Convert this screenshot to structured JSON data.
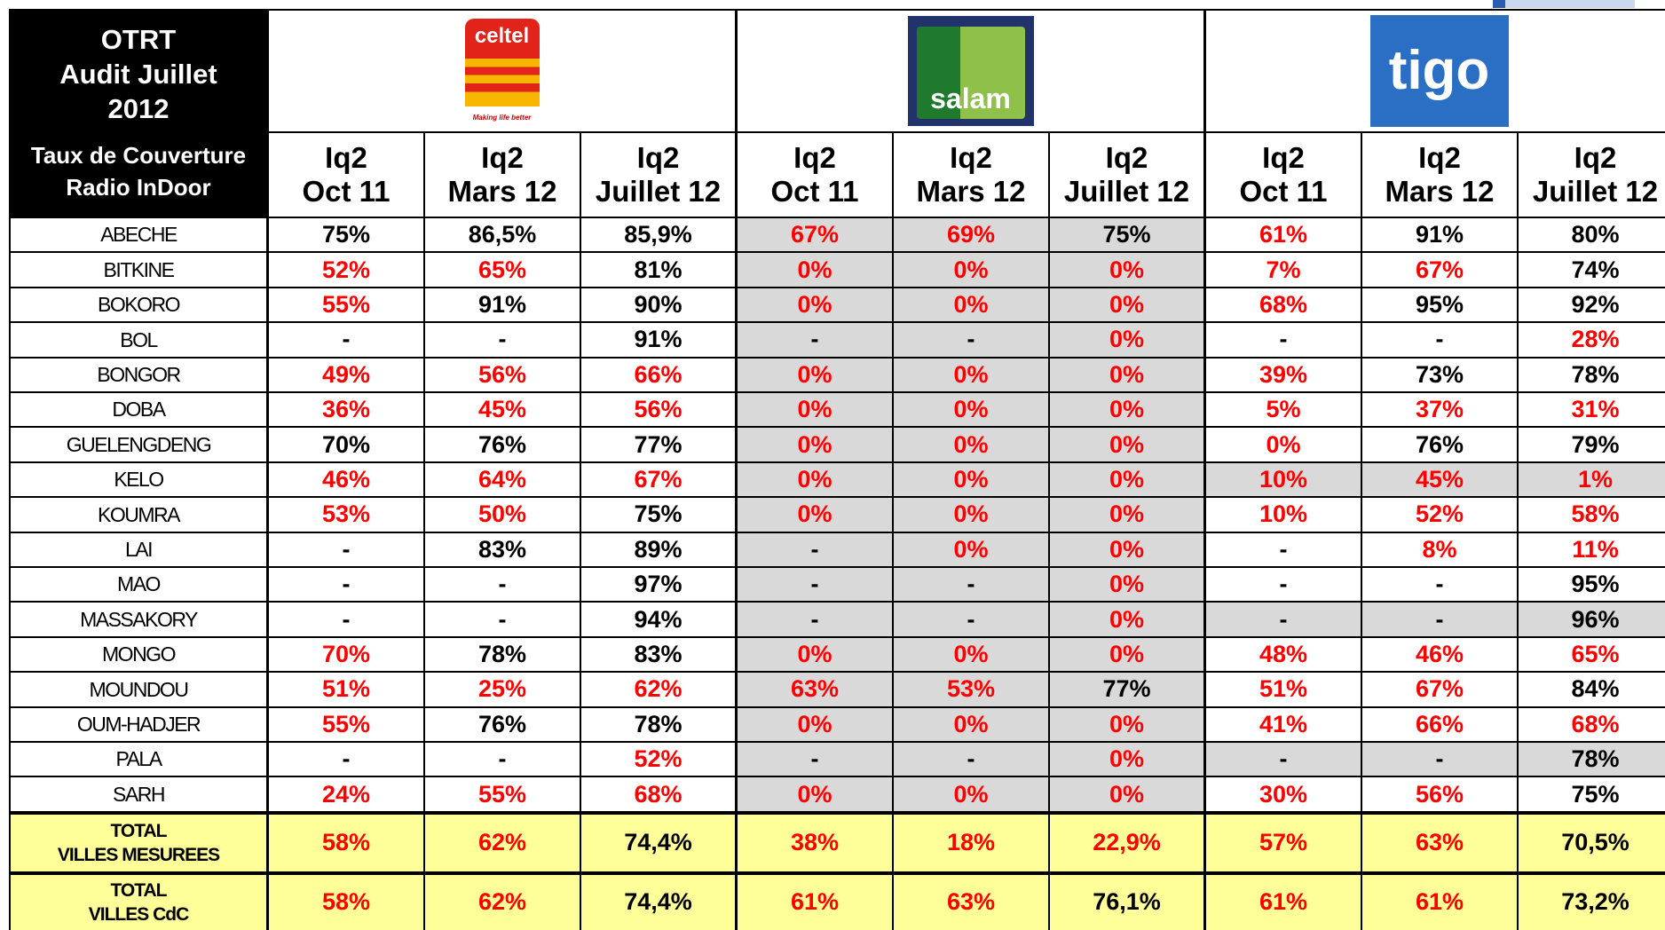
{
  "header": {
    "title_lines": [
      "OTRT",
      "Audit Juillet",
      "2012"
    ],
    "subtitle_lines": [
      "Taux de Couverture",
      "Radio InDoor"
    ]
  },
  "operators": [
    {
      "name": "celtel",
      "tagline": "Making life better",
      "color": "#e2231a"
    },
    {
      "name": "salam",
      "color": "#1f7a2e"
    },
    {
      "name": "tigo",
      "color": "#2a6fc4"
    }
  ],
  "columns": [
    [
      "Iq2",
      "Oct 11"
    ],
    [
      "Iq2",
      "Mars 12"
    ],
    [
      "Iq2",
      "Juillet 12"
    ],
    [
      "Iq2",
      "Oct 11"
    ],
    [
      "Iq2",
      "Mars 12"
    ],
    [
      "Iq2",
      "Juillet 12"
    ],
    [
      "Iq2",
      "Oct 11"
    ],
    [
      "Iq2",
      "Mars 12"
    ],
    [
      "Iq2",
      "Juillet 12"
    ]
  ],
  "rows": [
    {
      "city": "ABECHE",
      "cells": [
        "75%",
        "86,5%",
        "85,9%",
        "67%",
        "69%",
        "75%",
        "61%",
        "91%",
        "80%"
      ],
      "colors": [
        "#000",
        "#000",
        "#000",
        "#f00",
        "#f00",
        "#000",
        "#f00",
        "#000",
        "#000"
      ],
      "fills": [
        "#fff",
        "#fff",
        "#fff",
        "#d9d9d9",
        "#d9d9d9",
        "#d9d9d9",
        "#fff",
        "#fff",
        "#fff"
      ]
    },
    {
      "city": "BITKINE",
      "cells": [
        "52%",
        "65%",
        "81%",
        "0%",
        "0%",
        "0%",
        "7%",
        "67%",
        "74%"
      ],
      "colors": [
        "#f00",
        "#f00",
        "#000",
        "#f00",
        "#f00",
        "#f00",
        "#f00",
        "#f00",
        "#000"
      ],
      "fills": [
        "#fff",
        "#fff",
        "#fff",
        "#d9d9d9",
        "#d9d9d9",
        "#d9d9d9",
        "#fff",
        "#fff",
        "#fff"
      ]
    },
    {
      "city": "BOKORO",
      "cells": [
        "55%",
        "91%",
        "90%",
        "0%",
        "0%",
        "0%",
        "68%",
        "95%",
        "92%"
      ],
      "colors": [
        "#f00",
        "#000",
        "#000",
        "#f00",
        "#f00",
        "#f00",
        "#f00",
        "#000",
        "#000"
      ],
      "fills": [
        "#fff",
        "#fff",
        "#fff",
        "#d9d9d9",
        "#d9d9d9",
        "#d9d9d9",
        "#fff",
        "#fff",
        "#fff"
      ]
    },
    {
      "city": "BOL",
      "cells": [
        "-",
        "-",
        "91%",
        "-",
        "-",
        "0%",
        "-",
        "-",
        "28%"
      ],
      "colors": [
        "#000",
        "#000",
        "#000",
        "#000",
        "#000",
        "#f00",
        "#000",
        "#000",
        "#f00"
      ],
      "fills": [
        "#fff",
        "#fff",
        "#fff",
        "#d9d9d9",
        "#d9d9d9",
        "#d9d9d9",
        "#fff",
        "#fff",
        "#fff"
      ]
    },
    {
      "city": "BONGOR",
      "cells": [
        "49%",
        "56%",
        "66%",
        "0%",
        "0%",
        "0%",
        "39%",
        "73%",
        "78%"
      ],
      "colors": [
        "#f00",
        "#f00",
        "#f00",
        "#f00",
        "#f00",
        "#f00",
        "#f00",
        "#000",
        "#000"
      ],
      "fills": [
        "#fff",
        "#fff",
        "#fff",
        "#d9d9d9",
        "#d9d9d9",
        "#d9d9d9",
        "#fff",
        "#fff",
        "#fff"
      ]
    },
    {
      "city": "DOBA",
      "cells": [
        "36%",
        "45%",
        "56%",
        "0%",
        "0%",
        "0%",
        "5%",
        "37%",
        "31%"
      ],
      "colors": [
        "#f00",
        "#f00",
        "#f00",
        "#f00",
        "#f00",
        "#f00",
        "#f00",
        "#f00",
        "#f00"
      ],
      "fills": [
        "#fff",
        "#fff",
        "#fff",
        "#d9d9d9",
        "#d9d9d9",
        "#d9d9d9",
        "#fff",
        "#fff",
        "#fff"
      ]
    },
    {
      "city": "GUELENGDENG",
      "cells": [
        "70%",
        "76%",
        "77%",
        "0%",
        "0%",
        "0%",
        "0%",
        "76%",
        "79%"
      ],
      "colors": [
        "#000",
        "#000",
        "#000",
        "#f00",
        "#f00",
        "#f00",
        "#f00",
        "#000",
        "#000"
      ],
      "fills": [
        "#fff",
        "#fff",
        "#fff",
        "#d9d9d9",
        "#d9d9d9",
        "#d9d9d9",
        "#fff",
        "#fff",
        "#fff"
      ]
    },
    {
      "city": "KELO",
      "cells": [
        "46%",
        "64%",
        "67%",
        "0%",
        "0%",
        "0%",
        "10%",
        "45%",
        "1%"
      ],
      "colors": [
        "#f00",
        "#f00",
        "#f00",
        "#f00",
        "#f00",
        "#f00",
        "#f00",
        "#f00",
        "#f00"
      ],
      "fills": [
        "#fff",
        "#fff",
        "#fff",
        "#d9d9d9",
        "#d9d9d9",
        "#d9d9d9",
        "#d9d9d9",
        "#d9d9d9",
        "#d9d9d9"
      ]
    },
    {
      "city": "KOUMRA",
      "cells": [
        "53%",
        "50%",
        "75%",
        "0%",
        "0%",
        "0%",
        "10%",
        "52%",
        "58%"
      ],
      "colors": [
        "#f00",
        "#f00",
        "#000",
        "#f00",
        "#f00",
        "#f00",
        "#f00",
        "#f00",
        "#f00"
      ],
      "fills": [
        "#fff",
        "#fff",
        "#fff",
        "#d9d9d9",
        "#d9d9d9",
        "#d9d9d9",
        "#fff",
        "#fff",
        "#fff"
      ]
    },
    {
      "city": "LAI",
      "cells": [
        "-",
        "83%",
        "89%",
        "-",
        "0%",
        "0%",
        "-",
        "8%",
        "11%"
      ],
      "colors": [
        "#000",
        "#000",
        "#000",
        "#000",
        "#f00",
        "#f00",
        "#000",
        "#f00",
        "#f00"
      ],
      "fills": [
        "#fff",
        "#fff",
        "#fff",
        "#d9d9d9",
        "#d9d9d9",
        "#d9d9d9",
        "#fff",
        "#fff",
        "#fff"
      ]
    },
    {
      "city": "MAO",
      "cells": [
        "-",
        "-",
        "97%",
        "-",
        "-",
        "0%",
        "-",
        "-",
        "95%"
      ],
      "colors": [
        "#000",
        "#000",
        "#000",
        "#000",
        "#000",
        "#f00",
        "#000",
        "#000",
        "#000"
      ],
      "fills": [
        "#fff",
        "#fff",
        "#fff",
        "#d9d9d9",
        "#d9d9d9",
        "#d9d9d9",
        "#fff",
        "#fff",
        "#fff"
      ]
    },
    {
      "city": "MASSAKORY",
      "cells": [
        "-",
        "-",
        "94%",
        "-",
        "-",
        "0%",
        "-",
        "-",
        "96%"
      ],
      "colors": [
        "#000",
        "#000",
        "#000",
        "#000",
        "#000",
        "#f00",
        "#000",
        "#000",
        "#000"
      ],
      "fills": [
        "#fff",
        "#fff",
        "#fff",
        "#d9d9d9",
        "#d9d9d9",
        "#d9d9d9",
        "#d9d9d9",
        "#d9d9d9",
        "#d9d9d9"
      ]
    },
    {
      "city": "MONGO",
      "cells": [
        "70%",
        "78%",
        "83%",
        "0%",
        "0%",
        "0%",
        "48%",
        "46%",
        "65%"
      ],
      "colors": [
        "#f00",
        "#000",
        "#000",
        "#f00",
        "#f00",
        "#f00",
        "#f00",
        "#f00",
        "#f00"
      ],
      "fills": [
        "#fff",
        "#fff",
        "#fff",
        "#d9d9d9",
        "#d9d9d9",
        "#d9d9d9",
        "#fff",
        "#fff",
        "#fff"
      ]
    },
    {
      "city": "MOUNDOU",
      "cells": [
        "51%",
        "25%",
        "62%",
        "63%",
        "53%",
        "77%",
        "51%",
        "67%",
        "84%"
      ],
      "colors": [
        "#f00",
        "#f00",
        "#f00",
        "#f00",
        "#f00",
        "#000",
        "#f00",
        "#f00",
        "#000"
      ],
      "fills": [
        "#fff",
        "#fff",
        "#fff",
        "#d9d9d9",
        "#d9d9d9",
        "#d9d9d9",
        "#fff",
        "#fff",
        "#fff"
      ]
    },
    {
      "city": "OUM-HADJER",
      "cells": [
        "55%",
        "76%",
        "78%",
        "0%",
        "0%",
        "0%",
        "41%",
        "66%",
        "68%"
      ],
      "colors": [
        "#f00",
        "#000",
        "#000",
        "#f00",
        "#f00",
        "#f00",
        "#f00",
        "#f00",
        "#f00"
      ],
      "fills": [
        "#fff",
        "#fff",
        "#fff",
        "#d9d9d9",
        "#d9d9d9",
        "#d9d9d9",
        "#fff",
        "#fff",
        "#fff"
      ]
    },
    {
      "city": "PALA",
      "cells": [
        "-",
        "-",
        "52%",
        "-",
        "-",
        "0%",
        "-",
        "-",
        "78%"
      ],
      "colors": [
        "#000",
        "#000",
        "#f00",
        "#000",
        "#000",
        "#f00",
        "#000",
        "#000",
        "#000"
      ],
      "fills": [
        "#fff",
        "#fff",
        "#fff",
        "#d9d9d9",
        "#d9d9d9",
        "#d9d9d9",
        "#d9d9d9",
        "#d9d9d9",
        "#d9d9d9"
      ]
    },
    {
      "city": "SARH",
      "cells": [
        "24%",
        "55%",
        "68%",
        "0%",
        "0%",
        "0%",
        "30%",
        "56%",
        "75%"
      ],
      "colors": [
        "#f00",
        "#f00",
        "#f00",
        "#f00",
        "#f00",
        "#f00",
        "#f00",
        "#f00",
        "#000"
      ],
      "fills": [
        "#fff",
        "#fff",
        "#fff",
        "#d9d9d9",
        "#d9d9d9",
        "#d9d9d9",
        "#fff",
        "#fff",
        "#fff"
      ]
    }
  ],
  "totals": [
    {
      "label_lines": [
        "TOTAL",
        "VILLES MESUREES"
      ],
      "cells": [
        "58%",
        "62%",
        "74,4%",
        "38%",
        "18%",
        "22,9%",
        "57%",
        "63%",
        "70,5%"
      ],
      "colors": [
        "#f00",
        "#f00",
        "#000",
        "#f00",
        "#f00",
        "#f00",
        "#f00",
        "#f00",
        "#000"
      ],
      "fill": "#ffff99"
    },
    {
      "label_lines": [
        "TOTAL",
        "VILLES CdC"
      ],
      "cells": [
        "58%",
        "62%",
        "74,4%",
        "61%",
        "63%",
        "76,1%",
        "61%",
        "61%",
        "73,2%"
      ],
      "colors": [
        "#f00",
        "#f00",
        "#000",
        "#f00",
        "#f00",
        "#000",
        "#f00",
        "#f00",
        "#000"
      ],
      "fill": "#ffff99"
    }
  ]
}
